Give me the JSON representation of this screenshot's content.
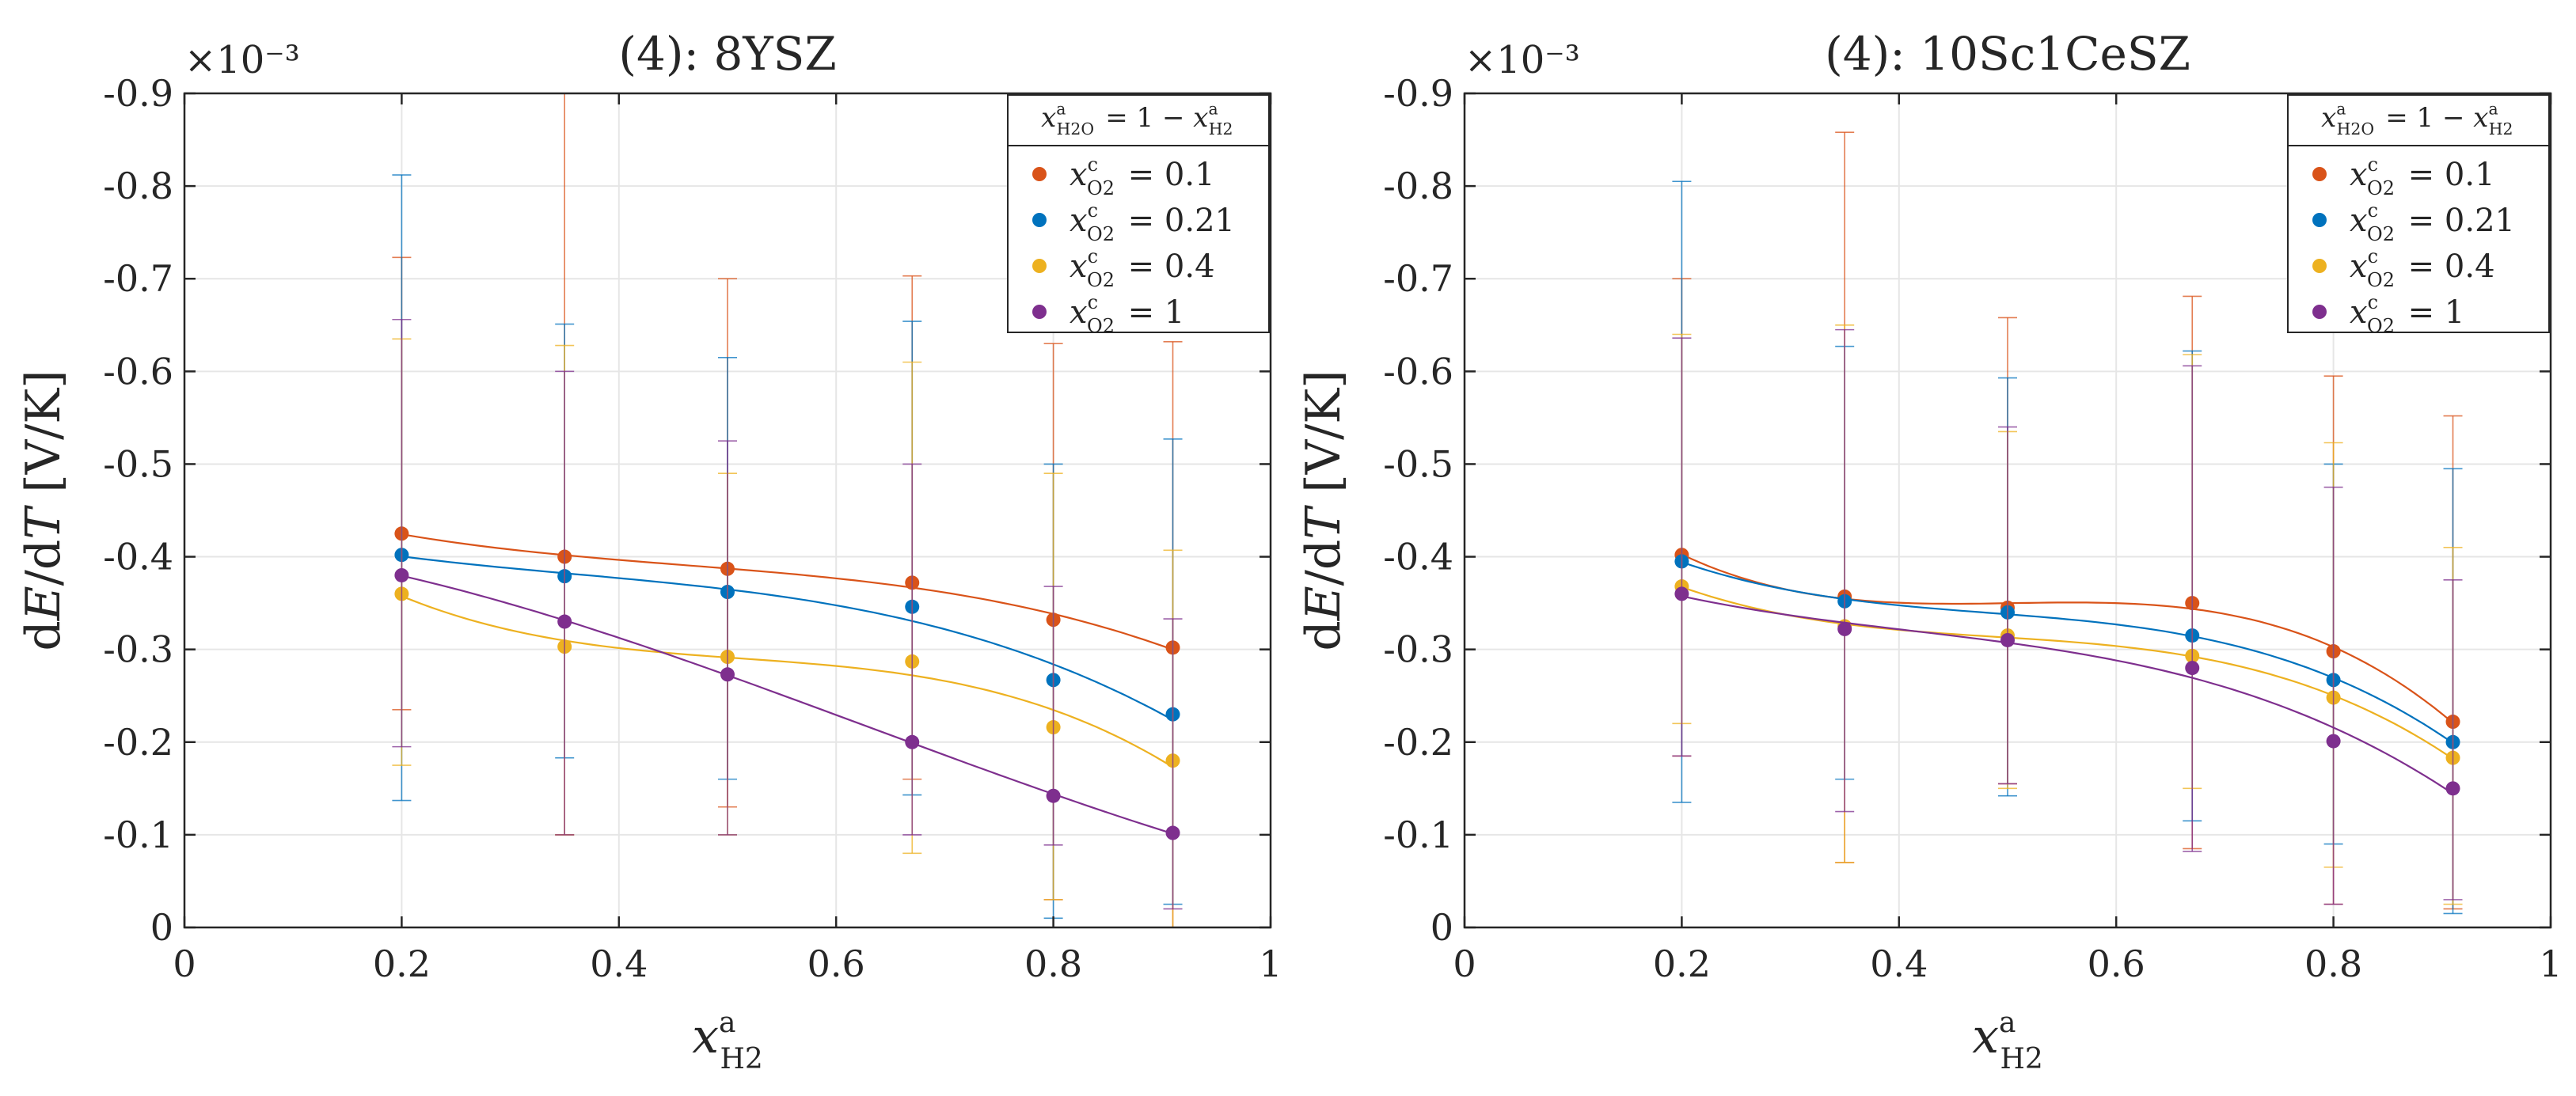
{
  "chart_data": [
    {
      "type": "scatter",
      "title": "(4):  8YSZ",
      "xlabel": "x_H2^a",
      "ylabel": "dE/dT [V/K]",
      "y_multiplier": "×10⁻³",
      "xlim": [
        0,
        1
      ],
      "ylim": [
        -0.9,
        0
      ],
      "y_inverted": true,
      "xticks": [
        "0",
        "0.2",
        "0.4",
        "0.6",
        "0.8",
        "1"
      ],
      "yticks": [
        "0",
        "-0.1",
        "-0.2",
        "-0.3",
        "-0.4",
        "-0.5",
        "-0.6",
        "-0.7",
        "-0.8",
        "-0.9"
      ],
      "grid": true,
      "legend_title": "x_H2O^a = 1 − x_H2^a",
      "legend_position": "top-right",
      "x": [
        0.2,
        0.35,
        0.5,
        0.67,
        0.8,
        0.91
      ],
      "series": [
        {
          "name": "x_O2^c = 0.1",
          "color": "#D95319",
          "values": [
            -0.425,
            -0.4,
            -0.387,
            -0.372,
            -0.332,
            -0.302
          ],
          "err_low": [
            -0.235,
            -0.1,
            -0.13,
            -0.16,
            -0.03,
            0.0
          ],
          "err_high": [
            -0.723,
            -0.9,
            -0.7,
            -0.703,
            -0.63,
            -0.632
          ]
        },
        {
          "name": "x_O2^c = 0.21",
          "color": "#0072BD",
          "values": [
            -0.402,
            -0.379,
            -0.362,
            -0.346,
            -0.267,
            -0.23
          ],
          "err_low": [
            -0.137,
            -0.183,
            -0.16,
            -0.143,
            -0.01,
            -0.025
          ],
          "err_high": [
            -0.812,
            -0.651,
            -0.615,
            -0.654,
            -0.5,
            -0.527
          ]
        },
        {
          "name": "x_O2^c = 0.4",
          "color": "#EDB120",
          "values": [
            -0.36,
            -0.303,
            -0.292,
            -0.287,
            -0.216,
            -0.18
          ],
          "err_low": [
            -0.175,
            -0.1,
            -0.1,
            -0.08,
            -0.03,
            0.0
          ],
          "err_high": [
            -0.635,
            -0.628,
            -0.49,
            -0.61,
            -0.49,
            -0.407
          ]
        },
        {
          "name": "x_O2^c = 1",
          "color": "#7E2F8E",
          "values": [
            -0.38,
            -0.33,
            -0.273,
            -0.2,
            -0.142,
            -0.102
          ],
          "err_low": [
            -0.195,
            -0.1,
            -0.1,
            -0.1,
            -0.089,
            -0.02
          ],
          "err_high": [
            -0.656,
            -0.6,
            -0.525,
            -0.5,
            -0.368,
            -0.333
          ]
        }
      ]
    },
    {
      "type": "scatter",
      "title": "(4):  10Sc1CeSZ",
      "xlabel": "x_H2^a",
      "ylabel": "dE/dT [V/K]",
      "y_multiplier": "×10⁻³",
      "xlim": [
        0,
        1
      ],
      "ylim": [
        -0.9,
        0
      ],
      "y_inverted": true,
      "xticks": [
        "0",
        "0.2",
        "0.4",
        "0.6",
        "0.8",
        "1"
      ],
      "yticks": [
        "0",
        "-0.1",
        "-0.2",
        "-0.3",
        "-0.4",
        "-0.5",
        "-0.6",
        "-0.7",
        "-0.8",
        "-0.9"
      ],
      "grid": true,
      "legend_title": "x_H2O^a = 1 − x_H2^a",
      "legend_position": "top-right",
      "x": [
        0.2,
        0.35,
        0.5,
        0.67,
        0.8,
        0.91
      ],
      "series": [
        {
          "name": "x_O2^c = 0.1",
          "color": "#D95319",
          "values": [
            -0.402,
            -0.357,
            -0.345,
            -0.35,
            -0.298,
            -0.222
          ],
          "err_low": [
            -0.185,
            -0.07,
            -0.155,
            -0.085,
            -0.025,
            -0.02
          ],
          "err_high": [
            -0.7,
            -0.858,
            -0.658,
            -0.681,
            -0.595,
            -0.552
          ]
        },
        {
          "name": "x_O2^c = 0.21",
          "color": "#0072BD",
          "values": [
            -0.395,
            -0.352,
            -0.34,
            -0.315,
            -0.267,
            -0.2
          ],
          "err_low": [
            -0.135,
            -0.16,
            -0.142,
            -0.115,
            -0.09,
            -0.015
          ],
          "err_high": [
            -0.805,
            -0.627,
            -0.593,
            -0.622,
            -0.5,
            -0.495
          ]
        },
        {
          "name": "x_O2^c = 0.4",
          "color": "#EDB120",
          "values": [
            -0.368,
            -0.325,
            -0.315,
            -0.293,
            -0.248,
            -0.183
          ],
          "err_low": [
            -0.22,
            -0.07,
            -0.15,
            -0.15,
            -0.065,
            -0.025
          ],
          "err_high": [
            -0.64,
            -0.65,
            -0.535,
            -0.618,
            -0.523,
            -0.41
          ]
        },
        {
          "name": "x_O2^c = 1",
          "color": "#7E2F8E",
          "values": [
            -0.36,
            -0.322,
            -0.31,
            -0.28,
            -0.201,
            -0.15
          ],
          "err_low": [
            -0.185,
            -0.125,
            -0.155,
            -0.082,
            -0.025,
            -0.03
          ],
          "err_high": [
            -0.636,
            -0.645,
            -0.54,
            -0.606,
            -0.475,
            -0.375
          ]
        }
      ]
    }
  ]
}
